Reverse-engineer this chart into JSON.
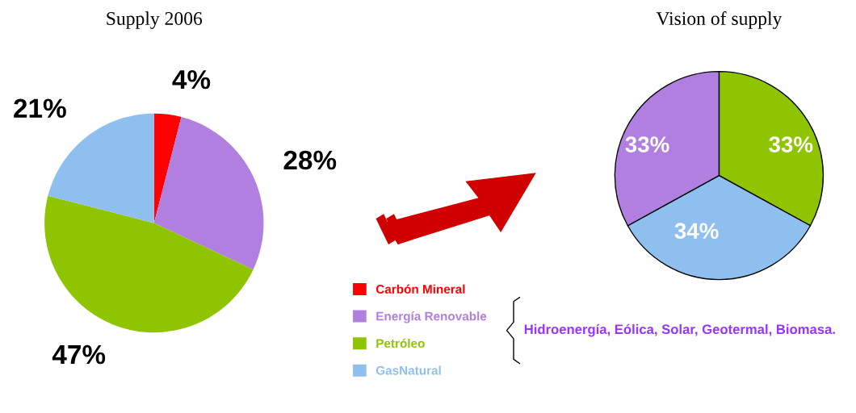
{
  "chart_data": [
    {
      "type": "pie",
      "title": "Supply 2006",
      "categories": [
        "Carbón Mineral",
        "Energía Renovable",
        "Petróleo",
        "GasNatural"
      ],
      "values": [
        4,
        28,
        47,
        21
      ],
      "value_labels": [
        "4%",
        "28%",
        "47%",
        "21%"
      ],
      "colors": [
        "#ff0000",
        "#b07fe0",
        "#8fc400",
        "#8fbfef"
      ],
      "legend": "right",
      "annotations": [
        "Hidroenergía, Eólica, Solar, Geotermal, Biomasa."
      ]
    },
    {
      "type": "pie",
      "title": "Vision of supply",
      "categories": [
        null,
        null,
        null
      ],
      "values": [
        33,
        34,
        33
      ],
      "value_labels": [
        "33%",
        "34%",
        "33%"
      ],
      "colors": [
        "#8fc400",
        "#8fbfef",
        "#b07fe0"
      ]
    }
  ]
}
